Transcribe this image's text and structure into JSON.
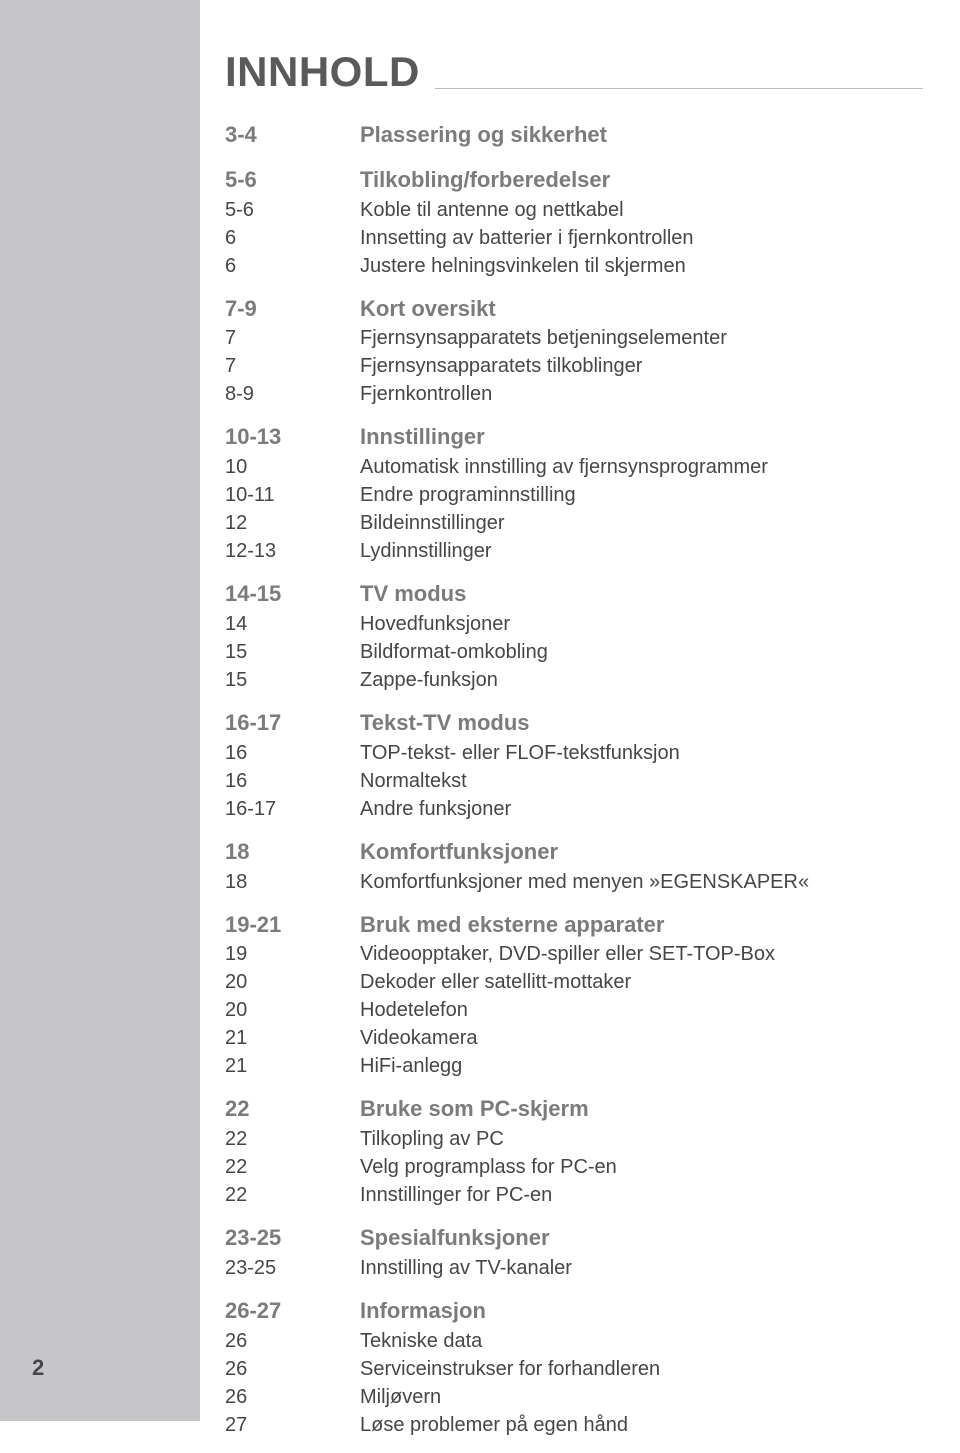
{
  "title": "INNHOLD",
  "page_number": "2",
  "colors": {
    "sidebar_bg": "#c6c6c8",
    "page_bg": "#ffffff",
    "title_color": "#5a5a5c",
    "heading_color": "#7b7b7d",
    "item_color": "#464648",
    "line_color": "#bcbcbe"
  },
  "typography": {
    "title_fontsize": 42,
    "heading_fontsize": 22,
    "item_fontsize": 20
  },
  "sections": [
    {
      "heading": {
        "page": "3-4",
        "text": "Plassering og sikkerhet"
      },
      "items": []
    },
    {
      "heading": {
        "page": "5-6",
        "text": "Tilkobling/forberedelser"
      },
      "items": [
        {
          "page": "5-6",
          "text": "Koble til antenne og nettkabel"
        },
        {
          "page": "6",
          "text": "Innsetting av batterier i fjernkontrollen"
        },
        {
          "page": "6",
          "text": "Justere helningsvinkelen til skjermen"
        }
      ]
    },
    {
      "heading": {
        "page": "7-9",
        "text": "Kort oversikt"
      },
      "items": [
        {
          "page": "7",
          "text": "Fjernsynsapparatets betjeningselementer"
        },
        {
          "page": "7",
          "text": "Fjernsynsapparatets tilkoblinger"
        },
        {
          "page": "8-9",
          "text": "Fjernkontrollen"
        }
      ]
    },
    {
      "heading": {
        "page": "10-13",
        "text": "Innstillinger"
      },
      "items": [
        {
          "page": "10",
          "text": "Automatisk innstilling av fjernsynsprogrammer"
        },
        {
          "page": "10-11",
          "text": "Endre programinnstilling"
        },
        {
          "page": "12",
          "text": "Bildeinnstillinger"
        },
        {
          "page": "12-13",
          "text": "Lydinnstillinger"
        }
      ]
    },
    {
      "heading": {
        "page": "14-15",
        "text": "TV modus"
      },
      "items": [
        {
          "page": "14",
          "text": "Hovedfunksjoner"
        },
        {
          "page": "15",
          "text": "Bildformat-omkobling"
        },
        {
          "page": "15",
          "text": "Zappe-funksjon"
        }
      ]
    },
    {
      "heading": {
        "page": "16-17",
        "text": "Tekst-TV modus"
      },
      "items": [
        {
          "page": "16",
          "text": "TOP-tekst- eller FLOF-tekstfunksjon"
        },
        {
          "page": "16",
          "text": "Normaltekst"
        },
        {
          "page": "16-17",
          "text": "Andre funksjoner"
        }
      ]
    },
    {
      "heading": {
        "page": "18",
        "text": "Komfortfunksjoner"
      },
      "items": [
        {
          "page": "18",
          "text": "Komfortfunksjoner med menyen »EGENSKAPER«"
        }
      ]
    },
    {
      "heading": {
        "page": "19-21",
        "text": "Bruk med eksterne apparater"
      },
      "items": [
        {
          "page": "19",
          "text": "Videoopptaker, DVD-spiller eller SET-TOP-Box"
        },
        {
          "page": "20",
          "text": "Dekoder eller satellitt-mottaker"
        },
        {
          "page": "20",
          "text": "Hodetelefon"
        },
        {
          "page": "21",
          "text": "Videokamera"
        },
        {
          "page": "21",
          "text": "HiFi-anlegg"
        }
      ]
    },
    {
      "heading": {
        "page": "22",
        "text": "Bruke som PC-skjerm"
      },
      "items": [
        {
          "page": "22",
          "text": "Tilkopling av PC"
        },
        {
          "page": "22",
          "text": "Velg programplass for PC-en"
        },
        {
          "page": "22",
          "text": "Innstillinger for PC-en"
        }
      ]
    },
    {
      "heading": {
        "page": "23-25",
        "text": "Spesialfunksjoner"
      },
      "items": [
        {
          "page": "23-25",
          "text": "Innstilling av TV-kanaler"
        }
      ]
    },
    {
      "heading": {
        "page": "26-27",
        "text": "Informasjon"
      },
      "items": [
        {
          "page": "26",
          "text": "Tekniske data"
        },
        {
          "page": "26",
          "text": "Serviceinstrukser for forhandleren"
        },
        {
          "page": "26",
          "text": "Miljøvern"
        },
        {
          "page": "27",
          "text": "Løse problemer på egen hånd"
        }
      ]
    }
  ]
}
